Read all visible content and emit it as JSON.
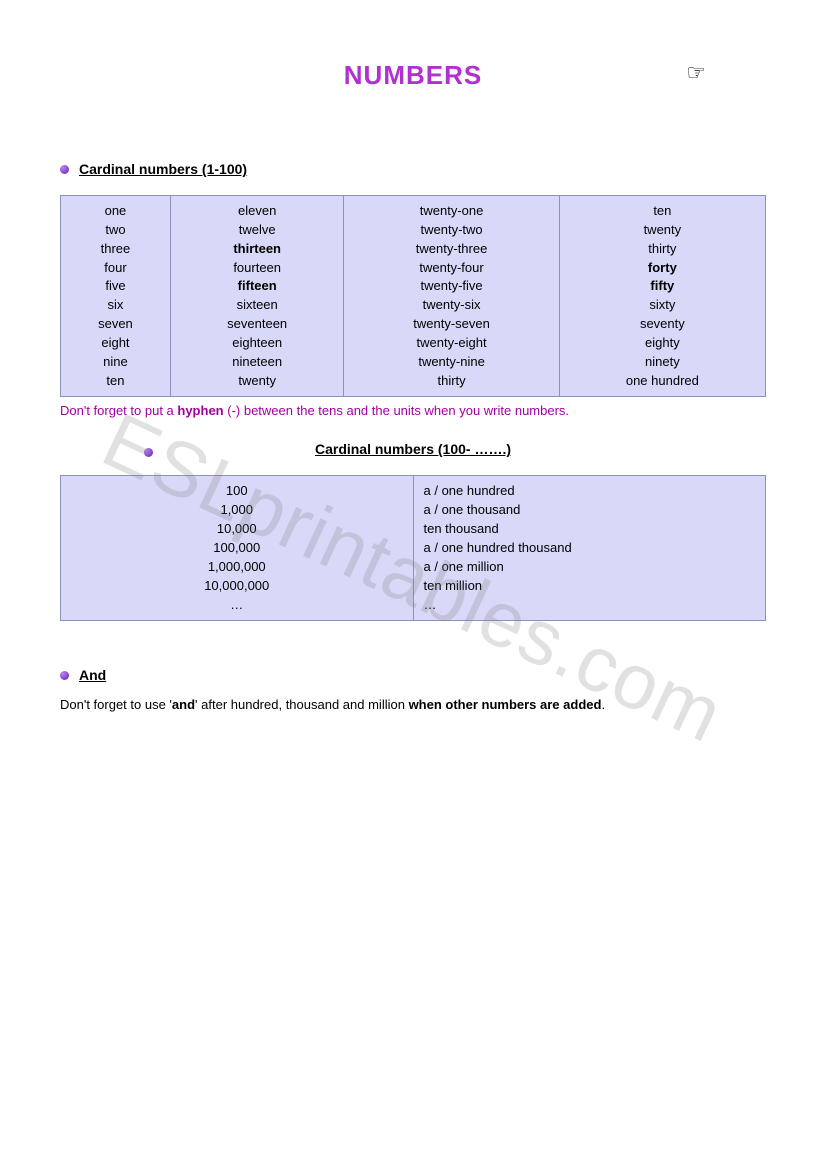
{
  "title": "NUMBERS",
  "icon_name": "pointing-hand-icon",
  "section1": {
    "heading": "Cardinal numbers (1-100)",
    "table": {
      "type": "table",
      "columns": 4,
      "cell_bg": "#d8d8f8",
      "border_color": "#9090c0",
      "font_size": 13,
      "col1": [
        "one",
        "two",
        "three",
        "four",
        "five",
        "six",
        "seven",
        "eight",
        "nine",
        "ten"
      ],
      "col2": [
        {
          "text": "eleven",
          "bold": false
        },
        {
          "text": "twelve",
          "bold": false
        },
        {
          "text": "thirteen",
          "bold": true
        },
        {
          "text": "fourteen",
          "bold": false
        },
        {
          "text": "fifteen",
          "bold": true
        },
        {
          "text": "sixteen",
          "bold": false
        },
        {
          "text": "seventeen",
          "bold": false
        },
        {
          "text": "eighteen",
          "bold": false
        },
        {
          "text": "nineteen",
          "bold": false
        },
        {
          "text": "twenty",
          "bold": false
        }
      ],
      "col3": [
        "twenty-one",
        "twenty-two",
        "twenty-three",
        "twenty-four",
        "twenty-five",
        "twenty-six",
        "twenty-seven",
        "twenty-eight",
        "twenty-nine",
        "thirty"
      ],
      "col4": [
        {
          "text": "ten",
          "bold": false
        },
        {
          "text": "twenty",
          "bold": false
        },
        {
          "text": "thirty",
          "bold": false
        },
        {
          "text": "forty",
          "bold": true
        },
        {
          "text": "fifty",
          "bold": true
        },
        {
          "text": "sixty",
          "bold": false
        },
        {
          "text": "seventy",
          "bold": false
        },
        {
          "text": "eighty",
          "bold": false
        },
        {
          "text": "ninety",
          "bold": false
        },
        {
          "text": "one hundred",
          "bold": false
        }
      ]
    },
    "note_pre": "Don't forget to put a ",
    "note_bold": "hyphen",
    "note_post": " (-) between the tens and the units when you write numbers."
  },
  "section2": {
    "heading": "Cardinal numbers (100- …….)",
    "table": {
      "type": "table",
      "columns": 2,
      "cell_bg": "#d8d8f8",
      "border_color": "#9090c0",
      "font_size": 13,
      "col1": [
        "100",
        "1,000",
        "10,000",
        "100,000",
        "1,000,000",
        "10,000,000",
        "…"
      ],
      "col2": [
        "a / one hundred",
        "a / one thousand",
        "ten thousand",
        "a / one hundred thousand",
        "a / one million",
        "ten million",
        "…"
      ]
    }
  },
  "section3": {
    "heading": "And",
    "text_pre": "Don't forget to use '",
    "text_bold1": "and",
    "text_mid": "' after hundred, thousand and million ",
    "text_bold2": "when other numbers are added",
    "text_post": "."
  },
  "watermark": "ESLprintables.com",
  "colors": {
    "title": "#b030d0",
    "note": "#a000a0",
    "bullet_light": "#c080ff",
    "bullet_dark": "#6020a0",
    "background": "#ffffff"
  }
}
